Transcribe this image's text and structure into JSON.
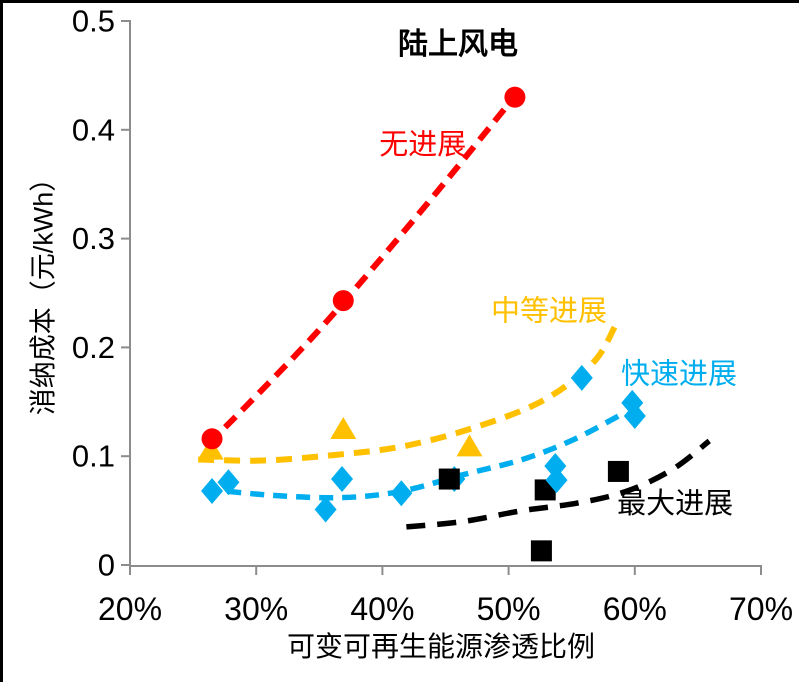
{
  "chart_data": {
    "type": "scatter",
    "title": "陆上风电",
    "xlabel": "可变可再生能源渗透比例",
    "ylabel": "消纳成本（元/kWh）",
    "xlim": [
      20,
      70
    ],
    "ylim": [
      0,
      0.5
    ],
    "grid": false,
    "legend_position": "inline-labels",
    "axis_color": "#8C8C8C",
    "text_color": "#000000",
    "x_ticks": [
      {
        "value": 20,
        "label": "20%"
      },
      {
        "value": 30,
        "label": "30%"
      },
      {
        "value": 40,
        "label": "40%"
      },
      {
        "value": 50,
        "label": "50%"
      },
      {
        "value": 60,
        "label": "60%"
      },
      {
        "value": 70,
        "label": "70%"
      }
    ],
    "y_ticks": [
      {
        "value": 0,
        "label": "0"
      },
      {
        "value": 0.1,
        "label": "0.1"
      },
      {
        "value": 0.2,
        "label": "0.2"
      },
      {
        "value": 0.3,
        "label": "0.3"
      },
      {
        "value": 0.4,
        "label": "0.4"
      },
      {
        "value": 0.5,
        "label": "0.5"
      }
    ],
    "series": [
      {
        "key": "no-progress",
        "name": "无进展",
        "color": "#FF0000",
        "marker": "circle",
        "dash": [
          15,
          9
        ],
        "stroke_width": 6,
        "z": 3,
        "points": [
          [
            26.5,
            0.116
          ],
          [
            36.9,
            0.243
          ],
          [
            50.5,
            0.43
          ]
        ],
        "trend": [
          [
            26.2,
            0.111
          ],
          [
            30.3,
            0.159
          ],
          [
            34.9,
            0.215
          ],
          [
            39.7,
            0.279
          ],
          [
            44.9,
            0.351
          ],
          [
            50.5,
            0.431
          ]
        ],
        "label_x": 43.2,
        "label_y": 0.386
      },
      {
        "key": "moderate-progress",
        "name": "中等进展",
        "color": "#FFC000",
        "marker": "triangle",
        "dash": [
          16,
          10
        ],
        "stroke_width": 6,
        "z": 1,
        "points": [
          [
            26.4,
            0.106
          ],
          [
            36.9,
            0.125
          ],
          [
            46.9,
            0.109
          ]
        ],
        "trend": [
          [
            25.4,
            0.097
          ],
          [
            30.5,
            0.096
          ],
          [
            36.1,
            0.101
          ],
          [
            41.6,
            0.109
          ],
          [
            47.2,
            0.126
          ],
          [
            52.7,
            0.151
          ],
          [
            56.7,
            0.186
          ],
          [
            58.5,
            0.221
          ]
        ],
        "label_x": 53.2,
        "label_y": 0.233
      },
      {
        "key": "rapid-progress",
        "name": "快速进展",
        "color": "#00AEEF",
        "marker": "diamond",
        "dash": [
          14,
          9
        ],
        "stroke_width": 5.5,
        "z": 4,
        "points": [
          [
            26.5,
            0.068
          ],
          [
            27.8,
            0.076
          ],
          [
            35.5,
            0.051
          ],
          [
            36.8,
            0.079
          ],
          [
            41.5,
            0.066
          ],
          [
            45.7,
            0.079,
            2
          ],
          [
            53.7,
            0.091
          ],
          [
            53.8,
            0.078
          ],
          [
            55.8,
            0.172
          ],
          [
            59.8,
            0.149
          ],
          [
            60.0,
            0.137
          ]
        ],
        "trend": [
          [
            25.9,
            0.07
          ],
          [
            31.3,
            0.064
          ],
          [
            36.9,
            0.062
          ],
          [
            41.6,
            0.068
          ],
          [
            46.4,
            0.083
          ],
          [
            51.1,
            0.097
          ],
          [
            55.1,
            0.115
          ],
          [
            59.2,
            0.14
          ]
        ],
        "label_x": 63.5,
        "label_y": 0.175
      },
      {
        "key": "max-progress",
        "name": "最大进展",
        "color": "#000000",
        "marker": "square",
        "dash": [
          19,
          12
        ],
        "stroke_width": 5.5,
        "z": 3,
        "points": [
          [
            45.3,
            0.079
          ],
          [
            52.6,
            0.013
          ],
          [
            52.9,
            0.069
          ],
          [
            58.7,
            0.086
          ]
        ],
        "trend": [
          [
            41.9,
            0.035
          ],
          [
            46.4,
            0.04
          ],
          [
            51.1,
            0.05
          ],
          [
            55.5,
            0.057
          ],
          [
            59.4,
            0.068
          ],
          [
            63.0,
            0.088
          ],
          [
            65.9,
            0.114
          ]
        ],
        "label_x": 63.2,
        "label_y": 0.056
      }
    ]
  }
}
